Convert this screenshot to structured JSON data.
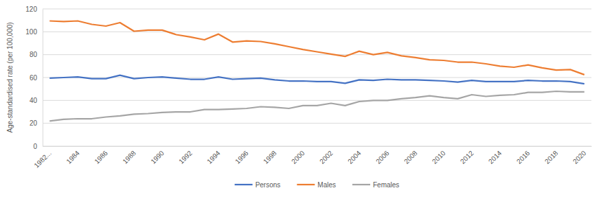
{
  "chart_data": {
    "type": "line",
    "y_label": "Age-standardised rate (per 100,000)",
    "categories": [
      "1982...",
      null,
      "1984",
      null,
      "1986",
      null,
      "1988",
      null,
      "1990",
      null,
      "1992",
      null,
      "1994",
      null,
      "1996",
      null,
      "1998",
      null,
      "2000",
      null,
      "2002",
      null,
      "2004",
      null,
      "2006",
      null,
      "2008",
      null,
      "2010",
      null,
      "2012",
      null,
      "2014",
      null,
      "2016",
      null,
      "2018",
      null,
      "2020"
    ],
    "series": [
      {
        "name": "Persons",
        "color": "#4472c4",
        "values": [
          59.5,
          60,
          60.5,
          59,
          59,
          62,
          59,
          60,
          60.5,
          59.5,
          58.5,
          58.5,
          60.5,
          58.5,
          59,
          59.5,
          58,
          57,
          57,
          56.5,
          56.5,
          55,
          58,
          57.5,
          58.5,
          58,
          58,
          57.5,
          57,
          56,
          57.5,
          56.5,
          56.5,
          56.5,
          57.5,
          57,
          57,
          56.5,
          54.5
        ]
      },
      {
        "name": "Males",
        "color": "#ed7d31",
        "values": [
          109.5,
          109,
          109.5,
          106.5,
          105,
          108,
          100.5,
          101.5,
          101.5,
          97.5,
          95.5,
          93,
          98,
          91,
          92,
          91.5,
          89.5,
          87,
          84.5,
          82.5,
          80.5,
          78.5,
          83,
          80,
          82,
          79,
          77.5,
          75.5,
          75,
          73.5,
          73.5,
          72,
          70,
          69,
          71,
          68.5,
          66.5,
          67,
          62.5
        ]
      },
      {
        "name": "Females",
        "color": "#a5a5a5",
        "values": [
          22,
          23.5,
          24,
          24,
          25.5,
          26.5,
          28,
          28.5,
          29.5,
          30,
          30,
          32,
          32,
          32.5,
          33,
          34.5,
          34,
          33,
          35.5,
          35.5,
          37.5,
          35.5,
          39,
          40,
          40,
          41.5,
          42.5,
          44,
          42.5,
          41.5,
          45,
          43.5,
          44.5,
          45,
          47,
          47,
          48,
          47.5,
          47.5
        ]
      }
    ],
    "ylim": [
      0,
      120
    ],
    "yticks": [
      0,
      20,
      40,
      60,
      80,
      100,
      120
    ],
    "grid": true,
    "legend": "bottom"
  }
}
